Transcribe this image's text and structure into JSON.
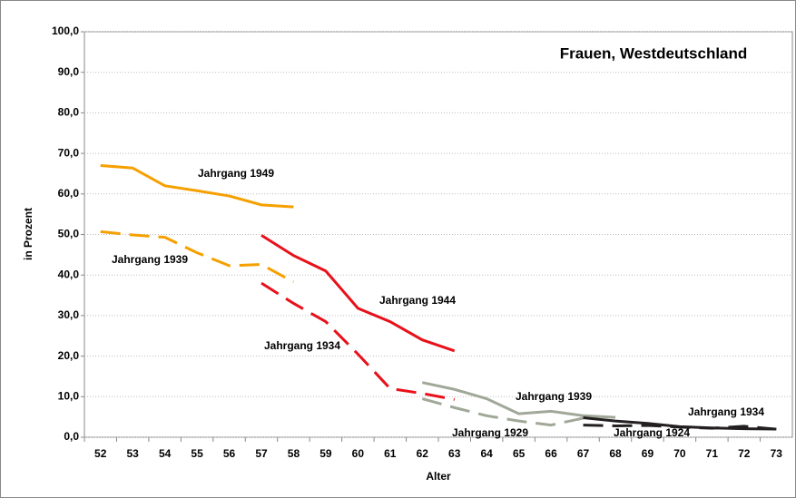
{
  "chart_data": {
    "type": "line",
    "title": "Frauen, Westdeutschland",
    "xlabel": "Alter",
    "ylabel": "in Prozent",
    "x": [
      52,
      53,
      54,
      55,
      56,
      57,
      58,
      59,
      60,
      61,
      62,
      63,
      64,
      65,
      66,
      67,
      68,
      69,
      70,
      71,
      72,
      73
    ],
    "ylim": [
      0,
      100
    ],
    "yticks": [
      {
        "value": 0,
        "label": "0,0"
      },
      {
        "value": 10,
        "label": "10,0"
      },
      {
        "value": 20,
        "label": "20,0"
      },
      {
        "value": 30,
        "label": "30,0"
      },
      {
        "value": 40,
        "label": "40,0"
      },
      {
        "value": 50,
        "label": "50,0"
      },
      {
        "value": 60,
        "label": "60,0"
      },
      {
        "value": 70,
        "label": "70,0"
      },
      {
        "value": 80,
        "label": "80,0"
      },
      {
        "value": 90,
        "label": "90,0"
      },
      {
        "value": 100,
        "label": "100,0"
      }
    ],
    "grid": true,
    "series": [
      {
        "name": "Jahrgang 1949",
        "color": "#f5a000",
        "dashed": false,
        "values": [
          67,
          66.4,
          62,
          60.8,
          59.5,
          57.3,
          56.8,
          null,
          null,
          null,
          null,
          null,
          null,
          null,
          null,
          null,
          null,
          null,
          null,
          null,
          null,
          null
        ]
      },
      {
        "name": "Jahrgang 1939",
        "color": "#f5a000",
        "dashed": true,
        "values": [
          50.7,
          49.9,
          49.3,
          45.5,
          42.3,
          42.6,
          38.3,
          null,
          null,
          null,
          null,
          null,
          null,
          null,
          null,
          null,
          null,
          null,
          null,
          null,
          null,
          null
        ]
      },
      {
        "name": "Jahrgang 1944",
        "color": "#e8101a",
        "dashed": false,
        "values": [
          null,
          null,
          null,
          null,
          null,
          49.8,
          44.8,
          41,
          31.8,
          28.5,
          24,
          21.3,
          null,
          null,
          null,
          null,
          null,
          null,
          null,
          null,
          null,
          null
        ]
      },
      {
        "name": "Jahrgang 1934",
        "color": "#e8101a",
        "dashed": true,
        "values": [
          null,
          null,
          null,
          null,
          null,
          38,
          33,
          28.5,
          20.5,
          12,
          10.8,
          9.3,
          null,
          null,
          null,
          null,
          null,
          null,
          null,
          null,
          null,
          null
        ]
      },
      {
        "name": "Jahrgang 1939",
        "color": "#a0a898",
        "dashed": false,
        "values": [
          null,
          null,
          null,
          null,
          null,
          null,
          null,
          null,
          null,
          null,
          13.5,
          11.8,
          9.5,
          5.8,
          6.4,
          5.3,
          4.9,
          null,
          null,
          null,
          null,
          null
        ]
      },
      {
        "name": "Jahrgang 1929",
        "color": "#a0a898",
        "dashed": true,
        "values": [
          null,
          null,
          null,
          null,
          null,
          null,
          null,
          null,
          null,
          null,
          9.5,
          7.3,
          5.3,
          4,
          3,
          4.7,
          null,
          null,
          null,
          null,
          null,
          null
        ]
      },
      {
        "name": "Jahrgang 1934",
        "color": "#231f20",
        "dashed": false,
        "values": [
          null,
          null,
          null,
          null,
          null,
          null,
          null,
          null,
          null,
          null,
          null,
          null,
          null,
          null,
          null,
          4.8,
          4,
          3.4,
          2.6,
          2.3,
          2.1,
          2
        ]
      },
      {
        "name": "Jahrgang 1924",
        "color": "#231f20",
        "dashed": true,
        "values": [
          null,
          null,
          null,
          null,
          null,
          null,
          null,
          null,
          null,
          null,
          null,
          null,
          null,
          null,
          null,
          3,
          2.8,
          2.9,
          2.5,
          2.2,
          2.7,
          2
        ]
      }
    ]
  }
}
